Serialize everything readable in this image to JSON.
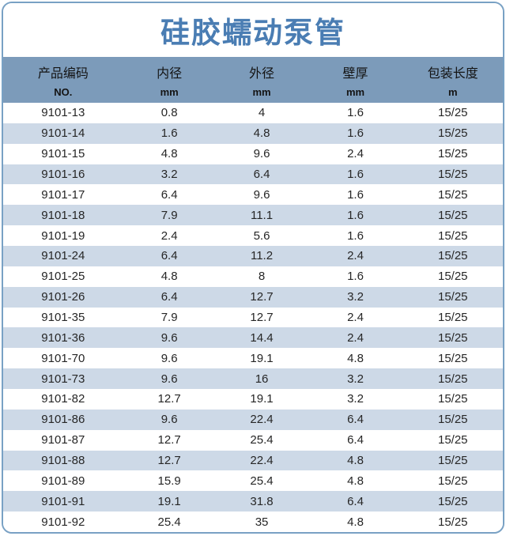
{
  "title": "硅胶蠕动泵管",
  "table": {
    "columns": [
      {
        "id": "product-code",
        "label": "产品编码",
        "unit": "NO."
      },
      {
        "id": "inner-diameter",
        "label": "内径",
        "unit": "mm"
      },
      {
        "id": "outer-diameter",
        "label": "外径",
        "unit": "mm"
      },
      {
        "id": "wall-thickness",
        "label": "壁厚",
        "unit": "mm"
      },
      {
        "id": "package-length",
        "label": "包装长度",
        "unit": "m"
      }
    ],
    "rows": [
      [
        "9101-13",
        "0.8",
        "4",
        "1.6",
        "15/25"
      ],
      [
        "9101-14",
        "1.6",
        "4.8",
        "1.6",
        "15/25"
      ],
      [
        "9101-15",
        "4.8",
        "9.6",
        "2.4",
        "15/25"
      ],
      [
        "9101-16",
        "3.2",
        "6.4",
        "1.6",
        "15/25"
      ],
      [
        "9101-17",
        "6.4",
        "9.6",
        "1.6",
        "15/25"
      ],
      [
        "9101-18",
        "7.9",
        "11.1",
        "1.6",
        "15/25"
      ],
      [
        "9101-19",
        "2.4",
        "5.6",
        "1.6",
        "15/25"
      ],
      [
        "9101-24",
        "6.4",
        "11.2",
        "2.4",
        "15/25"
      ],
      [
        "9101-25",
        "4.8",
        "8",
        "1.6",
        "15/25"
      ],
      [
        "9101-26",
        "6.4",
        "12.7",
        "3.2",
        "15/25"
      ],
      [
        "9101-35",
        "7.9",
        "12.7",
        "2.4",
        "15/25"
      ],
      [
        "9101-36",
        "9.6",
        "14.4",
        "2.4",
        "15/25"
      ],
      [
        "9101-70",
        "9.6",
        "19.1",
        "4.8",
        "15/25"
      ],
      [
        "9101-73",
        "9.6",
        "16",
        "3.2",
        "15/25"
      ],
      [
        "9101-82",
        "12.7",
        "19.1",
        "3.2",
        "15/25"
      ],
      [
        "9101-86",
        "9.6",
        "22.4",
        "6.4",
        "15/25"
      ],
      [
        "9101-87",
        "12.7",
        "25.4",
        "6.4",
        "15/25"
      ],
      [
        "9101-88",
        "12.7",
        "22.4",
        "4.8",
        "15/25"
      ],
      [
        "9101-89",
        "15.9",
        "25.4",
        "4.8",
        "15/25"
      ],
      [
        "9101-91",
        "19.1",
        "31.8",
        "6.4",
        "15/25"
      ],
      [
        "9101-92",
        "25.4",
        "35",
        "4.8",
        "15/25"
      ]
    ]
  },
  "colors": {
    "title_text": "#4a7db3",
    "header_bg": "#7c9bba",
    "header_text": "#141414",
    "row_bg": "#ffffff",
    "row_alt_bg": "#cdd9e7",
    "cell_text": "#262626",
    "border": "#79a1c4"
  }
}
